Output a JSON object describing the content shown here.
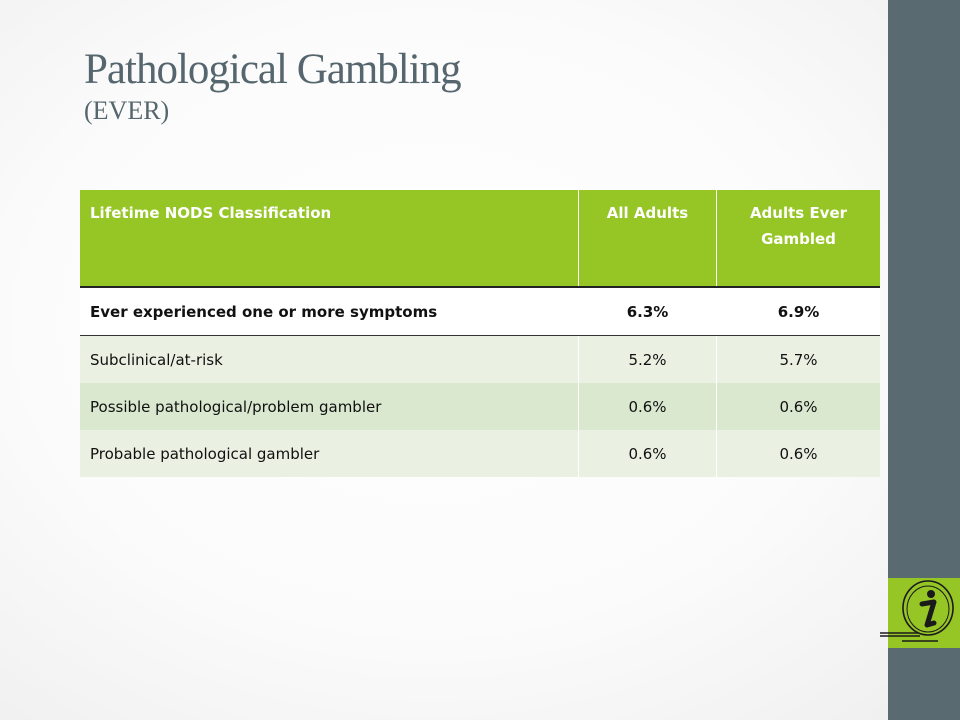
{
  "slide": {
    "title": "Pathological Gambling",
    "subtitle": "(EVER)"
  },
  "table": {
    "headers": [
      "Lifetime NODS Classification",
      "All Adults",
      "Adults Ever Gambled"
    ],
    "rows": [
      {
        "label": "Ever experienced one or more symptoms",
        "all_adults": "6.3%",
        "ever_gambled": "6.9%"
      },
      {
        "label": "Subclinical/at-risk",
        "all_adults": "5.2%",
        "ever_gambled": "5.7%"
      },
      {
        "label": "Possible pathological/problem gambler",
        "all_adults": "0.6%",
        "ever_gambled": "0.6%"
      },
      {
        "label": "Probable pathological gambler",
        "all_adults": "0.6%",
        "ever_gambled": "0.6%"
      }
    ]
  },
  "colors": {
    "accent_green": "#96c526",
    "sidebar": "#5a6a71",
    "title": "#56666e"
  },
  "icons": {
    "info": "info-icon"
  }
}
